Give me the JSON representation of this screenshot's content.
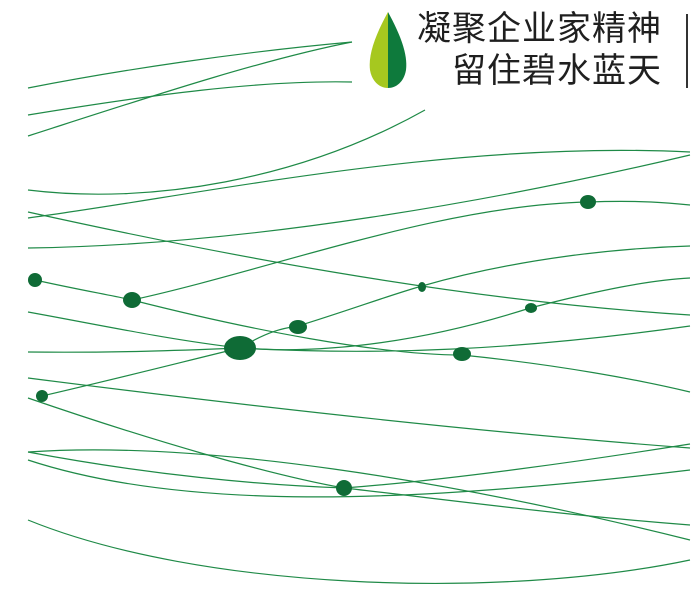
{
  "title": {
    "line1": "凝聚企业家精神",
    "line2": "留住碧水蓝天"
  },
  "logo": {
    "icon": "leaf-drop-icon",
    "color_light": "#a6c81f",
    "color_dark": "#0e7a3c"
  },
  "decoration": {
    "line_color": "#1f8a47",
    "dot_color": "#0f6b36"
  }
}
